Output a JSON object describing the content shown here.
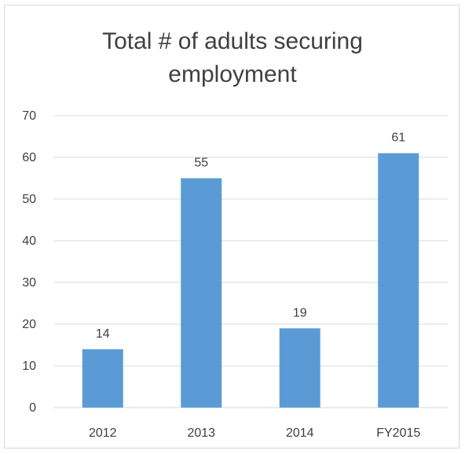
{
  "chart_data": {
    "type": "bar",
    "title": "Total # of adults securing\nemployment",
    "categories": [
      "2012",
      "2013",
      "2014",
      "FY2015"
    ],
    "values": [
      14,
      55,
      19,
      61
    ],
    "data_labels": [
      "14",
      "55",
      "19",
      "61"
    ],
    "y_ticks": [
      "0",
      "10",
      "20",
      "30",
      "40",
      "50",
      "60",
      "70"
    ],
    "xlabel": "",
    "ylabel": "",
    "ylim": [
      0,
      70
    ],
    "grid": true,
    "legend": "none",
    "bar_color": "#5b9bd5",
    "grid_color": "#d9d9d9",
    "text_color": "#404040"
  }
}
